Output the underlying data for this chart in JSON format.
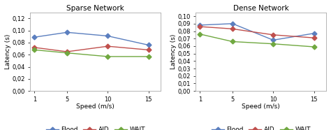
{
  "sparse": {
    "title": "Sparse Network",
    "x": [
      1,
      5,
      10,
      15
    ],
    "flood": [
      0.089,
      0.097,
      0.091,
      0.076
    ],
    "aid": [
      0.072,
      0.065,
      0.074,
      0.068
    ],
    "wait": [
      0.068,
      0.063,
      0.057,
      0.057
    ],
    "ylim": [
      0,
      0.13
    ],
    "yticks": [
      0,
      0.02,
      0.04,
      0.06,
      0.08,
      0.1,
      0.12
    ]
  },
  "dense": {
    "title": "Dense Network",
    "x": [
      1,
      5,
      10,
      15
    ],
    "flood": [
      0.088,
      0.09,
      0.068,
      0.077
    ],
    "aid": [
      0.086,
      0.083,
      0.075,
      0.071
    ],
    "wait": [
      0.076,
      0.066,
      0.063,
      0.059
    ],
    "ylim": [
      0,
      0.105
    ],
    "yticks": [
      0,
      0.01,
      0.02,
      0.03,
      0.04,
      0.05,
      0.06,
      0.07,
      0.08,
      0.09,
      0.1
    ]
  },
  "flood_color": "#5B7FBF",
  "aid_color": "#C0504D",
  "wait_color": "#70A840",
  "xlabel": "Speed (m/s)",
  "ylabel": "Latency (s)",
  "legend_labels": [
    "Flood",
    "AID",
    "WAIT"
  ],
  "xticks": [
    1,
    5,
    10,
    15
  ],
  "marker": "D",
  "markersize": 3.5,
  "linewidth": 1.0,
  "fontsize_title": 7.5,
  "fontsize_axis": 6.5,
  "fontsize_tick": 6.0,
  "fontsize_legend": 6.5
}
